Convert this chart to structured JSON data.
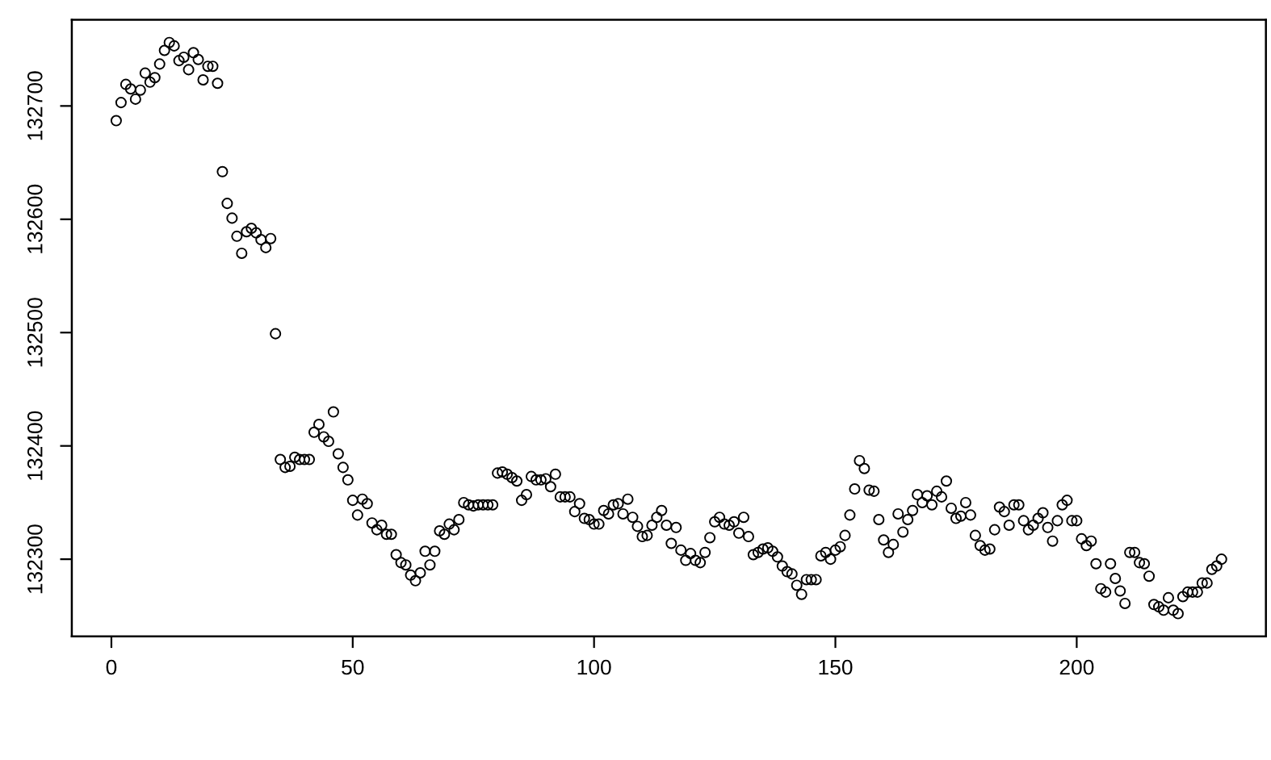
{
  "chart_data": {
    "type": "scatter",
    "marker": "circle",
    "color": "#000000",
    "x": [
      1,
      2,
      3,
      4,
      5,
      6,
      7,
      8,
      9,
      10,
      11,
      12,
      13,
      14,
      15,
      16,
      17,
      18,
      19,
      20,
      21,
      22,
      23,
      24,
      25,
      26,
      27,
      28,
      29,
      30,
      31,
      32,
      33,
      34,
      35,
      36,
      37,
      38,
      39,
      40,
      41,
      42,
      43,
      44,
      45,
      46,
      47,
      48,
      49,
      50,
      51,
      52,
      53,
      54,
      55,
      56,
      57,
      58,
      59,
      60,
      61,
      62,
      63,
      64,
      65,
      66,
      67,
      68,
      69,
      70,
      71,
      72,
      73,
      74,
      75,
      76,
      77,
      78,
      79,
      80,
      81,
      82,
      83,
      84,
      85,
      86,
      87,
      88,
      89,
      90,
      91,
      92,
      93,
      94,
      95,
      96,
      97,
      98,
      99,
      100,
      101,
      102,
      103,
      104,
      105,
      106,
      107,
      108,
      109,
      110,
      111,
      112,
      113,
      114,
      115,
      116,
      117,
      118,
      119,
      120,
      121,
      122,
      123,
      124,
      125,
      126,
      127,
      128,
      129,
      130,
      131,
      132,
      133,
      134,
      135,
      136,
      137,
      138,
      139,
      140,
      141,
      142,
      143,
      144,
      145,
      146,
      147,
      148,
      149,
      150,
      151,
      152,
      153,
      154,
      155,
      156,
      157,
      158,
      159,
      160,
      161,
      162,
      163,
      164,
      165,
      166,
      167,
      168,
      169,
      170,
      171,
      172,
      173,
      174,
      175,
      176,
      177,
      178,
      179,
      180,
      181,
      182,
      183,
      184,
      185,
      186,
      187,
      188,
      189,
      190,
      191,
      192,
      193,
      194,
      195,
      196,
      197,
      198,
      199,
      200,
      201,
      202,
      203,
      204,
      205,
      206,
      207,
      208,
      209,
      210,
      211,
      212,
      213,
      214,
      215,
      216,
      217,
      218,
      219,
      220,
      221,
      222,
      223,
      224,
      225,
      226,
      227,
      228,
      229,
      230
    ],
    "values": [
      132687,
      132703,
      132719,
      132715,
      132706,
      132714,
      132729,
      132721,
      132725,
      132737,
      132749,
      132756,
      132753,
      132740,
      132743,
      132732,
      132747,
      132741,
      132723,
      132735,
      132735,
      132720,
      132642,
      132614,
      132601,
      132585,
      132570,
      132589,
      132592,
      132588,
      132582,
      132575,
      132583,
      132499,
      132388,
      132381,
      132382,
      132390,
      132388,
      132388,
      132388,
      132412,
      132419,
      132408,
      132404,
      132430,
      132393,
      132381,
      132370,
      132352,
      132339,
      132353,
      132349,
      132332,
      132326,
      132330,
      132322,
      132322,
      132304,
      132297,
      132295,
      132286,
      132281,
      132288,
      132307,
      132295,
      132307,
      132325,
      132322,
      132331,
      132326,
      132335,
      132350,
      132348,
      132347,
      132348,
      132348,
      132348,
      132348,
      132376,
      132377,
      132375,
      132372,
      132369,
      132352,
      132357,
      132373,
      132370,
      132370,
      132371,
      132364,
      132375,
      132355,
      132355,
      132355,
      132342,
      132349,
      132336,
      132335,
      132331,
      132331,
      132343,
      132340,
      132348,
      132349,
      132340,
      132353,
      132337,
      132329,
      132320,
      132321,
      132330,
      132337,
      132343,
      132330,
      132314,
      132328,
      132308,
      132299,
      132305,
      132299,
      132297,
      132306,
      132319,
      132333,
      132337,
      132331,
      132330,
      132333,
      132323,
      132337,
      132320,
      132304,
      132306,
      132309,
      132310,
      132307,
      132302,
      132294,
      132289,
      132287,
      132277,
      132269,
      132282,
      132282,
      132282,
      132303,
      132306,
      132300,
      132308,
      132311,
      132321,
      132339,
      132362,
      132387,
      132380,
      132361,
      132360,
      132335,
      132317,
      132306,
      132313,
      132340,
      132324,
      132335,
      132343,
      132357,
      132350,
      132356,
      132348,
      132360,
      132355,
      132369,
      132345,
      132336,
      132338,
      132350,
      132339,
      132321,
      132312,
      132308,
      132309,
      132326,
      132346,
      132342,
      132330,
      132348,
      132348,
      132334,
      132326,
      132330,
      132336,
      132341,
      132328,
      132316,
      132334,
      132348,
      132352,
      132334,
      132334,
      132318,
      132312,
      132316,
      132296,
      132274,
      132271,
      132296,
      132283,
      132272,
      132261,
      132306,
      132306,
      132297,
      132296,
      132285,
      132260,
      132258,
      132255,
      132266,
      132255,
      132252,
      132267,
      132271,
      132271,
      132271,
      132279,
      132279,
      132291,
      132294,
      132300
    ],
    "xlim": [
      -8.2,
      239.2
    ],
    "ylim": [
      132232,
      132776
    ],
    "xticks": [
      0,
      50,
      100,
      150,
      200
    ],
    "yticks": [
      132300,
      132400,
      132500,
      132600,
      132700
    ]
  }
}
